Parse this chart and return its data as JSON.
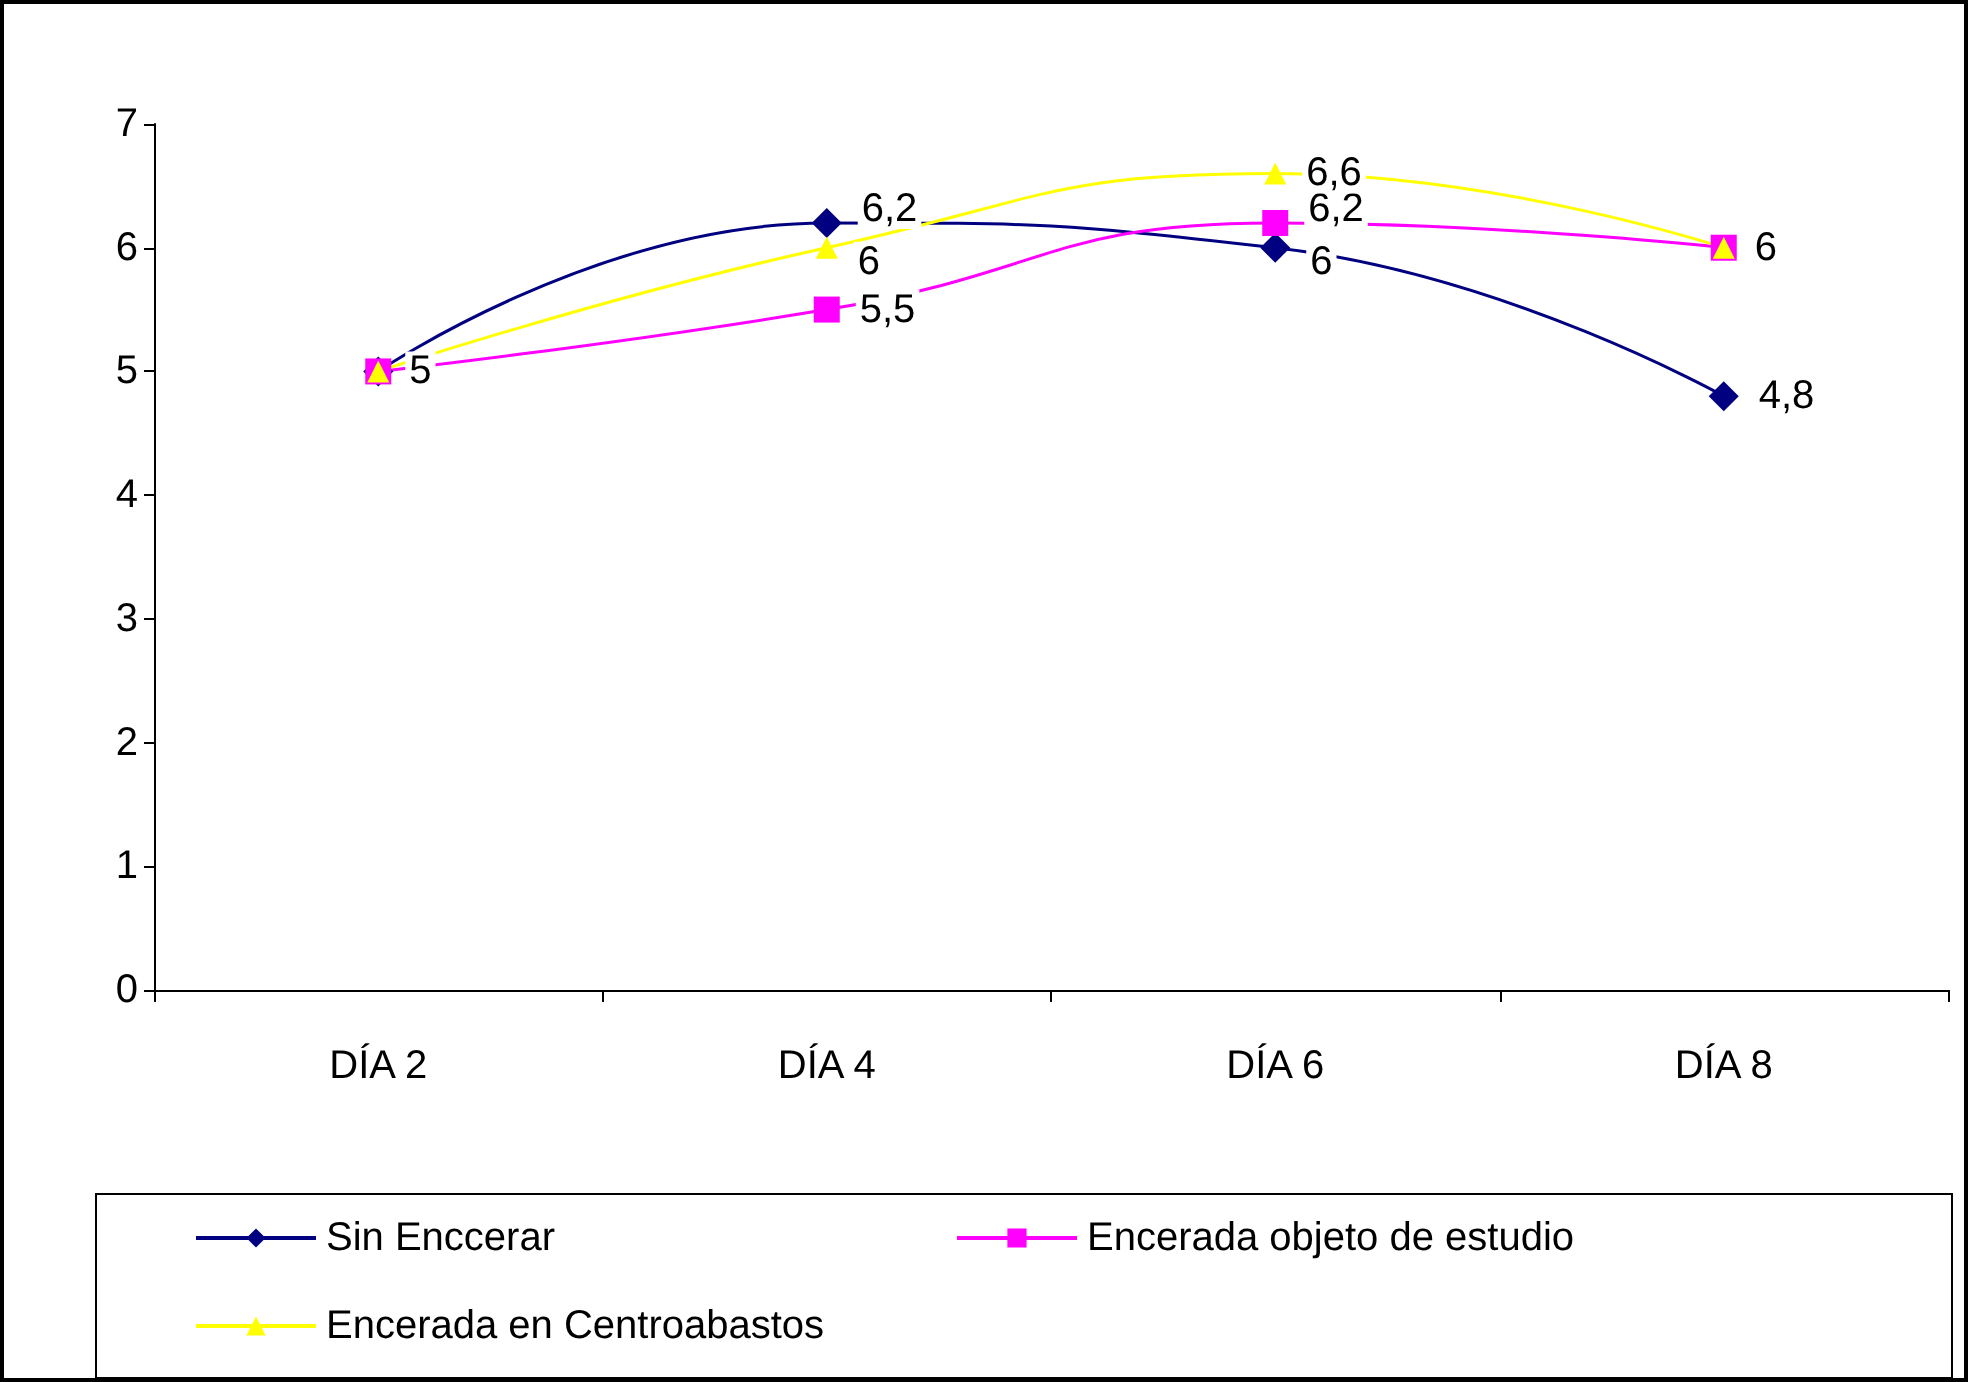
{
  "chart_data": {
    "type": "line",
    "categories": [
      "DÍA 2",
      "DÍA 4",
      "DÍA 6",
      "DÍA 8"
    ],
    "series": [
      {
        "name": "Sin Enccerar",
        "color": "#000080",
        "marker": "diamond",
        "values": [
          5,
          6.2,
          6,
          4.8
        ],
        "value_labels": [
          null,
          "6,2",
          "6",
          "4,8"
        ]
      },
      {
        "name": "Encerada objeto de estudio",
        "color": "#ff00ff",
        "marker": "square",
        "values": [
          5,
          5.5,
          6.2,
          6
        ],
        "value_labels": [
          null,
          "5,5",
          "6,2",
          null
        ]
      },
      {
        "name": "Encerada en Centroabastos",
        "color": "#ffff00",
        "marker": "triangle",
        "values": [
          5,
          6,
          6.6,
          6
        ],
        "value_labels": [
          "5",
          "6",
          "6,6",
          "6"
        ]
      }
    ],
    "ylim": [
      0,
      7
    ],
    "yticks": [
      0,
      1,
      2,
      3,
      4,
      5,
      6,
      7
    ],
    "grid": false,
    "legend": "bottom"
  }
}
